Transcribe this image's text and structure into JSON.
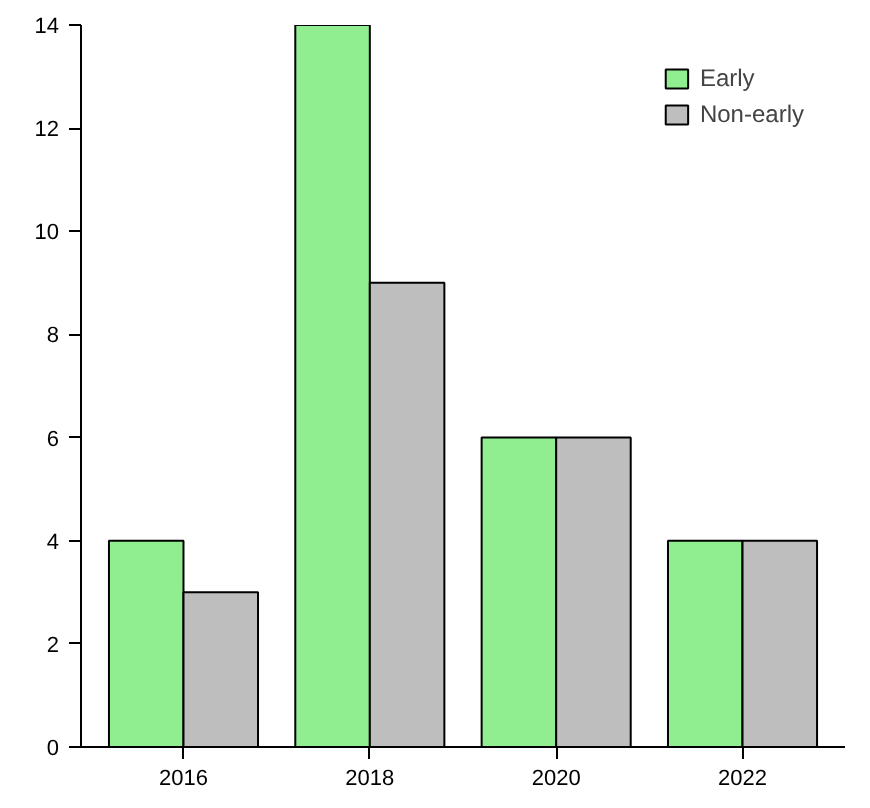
{
  "chart_data": {
    "type": "bar",
    "categories": [
      "2016",
      "2018",
      "2020",
      "2022"
    ],
    "series": [
      {
        "name": "Early",
        "color": "#90ee90",
        "values": [
          4,
          14,
          6,
          4
        ]
      },
      {
        "name": "Non-early",
        "color": "#bebebe",
        "values": [
          3,
          9,
          6,
          4
        ]
      }
    ],
    "ylim": [
      0,
      14
    ],
    "yticks": [
      0,
      2,
      4,
      6,
      8,
      10,
      12,
      14
    ],
    "grid": false,
    "legend": "top right"
  }
}
